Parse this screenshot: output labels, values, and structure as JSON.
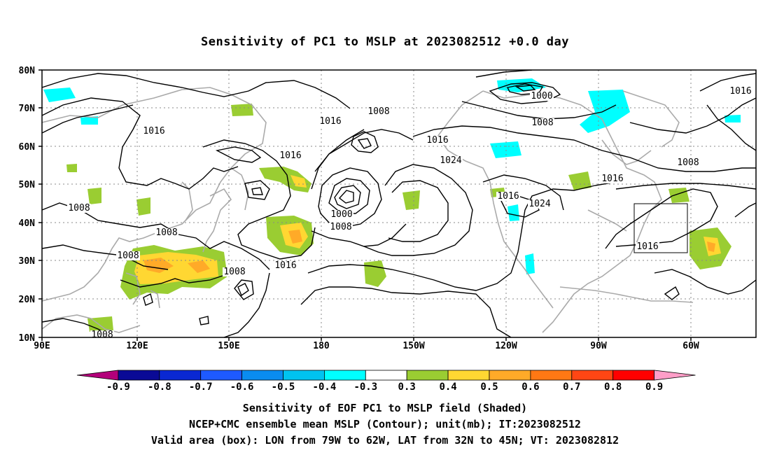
{
  "title": "Sensitivity of PC1 to MSLP at 2023082512 +0.0 day",
  "lat_labels": [
    "80N",
    "70N",
    "60N",
    "50N",
    "40N",
    "30N",
    "20N",
    "10N"
  ],
  "lon_labels": [
    "90E",
    "120E",
    "150E",
    "180",
    "150W",
    "120W",
    "90W",
    "60W"
  ],
  "contour_labels": [
    {
      "text": "1000"
    },
    {
      "text": "1008"
    },
    {
      "text": "1016"
    },
    {
      "text": "1016"
    },
    {
      "text": "1008"
    },
    {
      "text": "1016"
    },
    {
      "text": "1016"
    },
    {
      "text": "1024"
    },
    {
      "text": "1016"
    },
    {
      "text": "1008"
    },
    {
      "text": "1008"
    },
    {
      "text": "1016"
    },
    {
      "text": "1008"
    },
    {
      "text": "1008"
    },
    {
      "text": "1000"
    },
    {
      "text": "1008"
    },
    {
      "text": "1016"
    },
    {
      "text": "1008"
    },
    {
      "text": "1016"
    },
    {
      "text": "1024"
    },
    {
      "text": "1016"
    },
    {
      "text": "1008"
    }
  ],
  "colorbar": {
    "colors": [
      "#b3007a",
      "#0a0a96",
      "#0a28d2",
      "#1e5aff",
      "#0a8cf0",
      "#00c3f0",
      "#00ffff",
      "#ffffff",
      "#9acd32",
      "#ffd732",
      "#ffaa28",
      "#ff7814",
      "#ff4614",
      "#ff0000",
      "#ff9ec8"
    ],
    "labels": [
      "-0.9",
      "-0.8",
      "-0.7",
      "-0.6",
      "-0.5",
      "-0.4",
      "-0.3",
      "0.3",
      "0.4",
      "0.5",
      "0.6",
      "0.7",
      "0.8",
      "0.9"
    ]
  },
  "caption_line1": "Sensitivity of EOF PC1 to MSLP field (Shaded)",
  "caption_line2": "NCEP+CMC ensemble mean MSLP (Contour); unit(mb); IT:2023082512",
  "caption_line3": "Valid area (box): LON from 79W to 62W, LAT from 32N to 45N; VT: 2023082812",
  "colors": {
    "coast": "#aaaaaa",
    "contour": "#000000",
    "grid": "#888888",
    "positive_low": "#9acd32",
    "positive_mid": "#ffd732",
    "positive_high": "#ffaa28",
    "negative": "#00ffff"
  }
}
